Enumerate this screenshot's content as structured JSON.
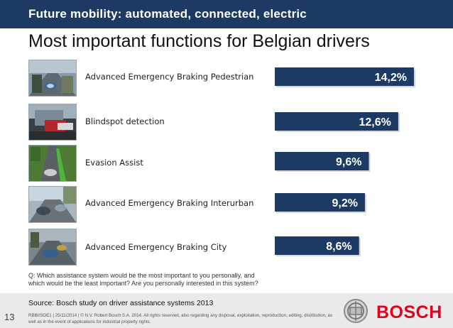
{
  "header": {
    "banner": "Future mobility: automated, connected, electric"
  },
  "title": "Most important functions for Belgian drivers",
  "chart_data": {
    "type": "bar",
    "orientation": "horizontal",
    "categories": [
      "Advanced Emergency Braking Pedestrian",
      "Blindspot detection",
      "Evasion Assist",
      "Advanced Emergency Braking Interurban",
      "Advanced Emergency Braking City"
    ],
    "values": [
      14.2,
      12.6,
      9.6,
      9.2,
      8.6
    ],
    "value_labels": [
      "14,2%",
      "12,6%",
      "9,6%",
      "9,2%",
      "8,6%"
    ],
    "bar_color": "#1c3a64",
    "grid": false
  },
  "question": "Q: Which assistance system would be the most important to you personally, and which would be the least important? Are you personally interested in this system?",
  "footer": {
    "source": "Source: Bosch study on driver assistance systems 2013",
    "legal": "RBBI/SOE1 | 25/11/2014 | © N.V. Robert Bosch S.A. 2014. All rights reserved, also regarding any disposal, exploitation, reproduction, editing, distribution, as well as in the event of applications for industrial property rights.",
    "page": "13",
    "brand": "BOSCH",
    "brand_color": "#e2001a"
  }
}
